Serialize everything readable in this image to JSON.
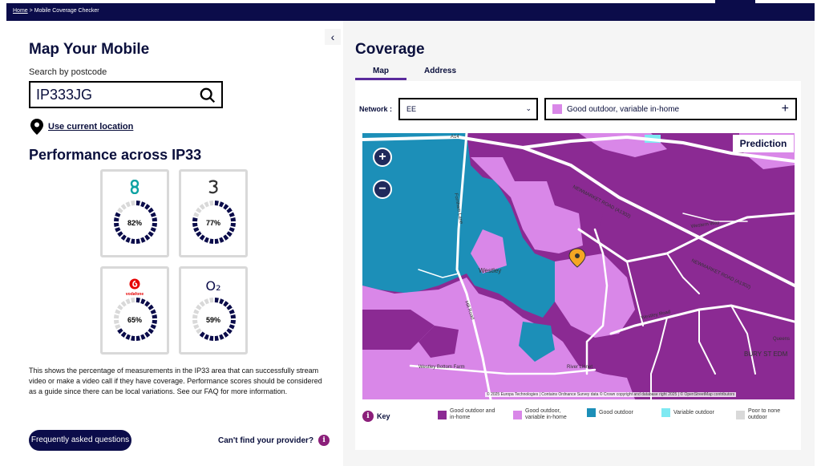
{
  "breadcrumb": {
    "home": "Home",
    "separator": ">",
    "current": "Mobile Coverage Checker"
  },
  "left": {
    "title": "Map Your Mobile",
    "search_label": "Search by postcode",
    "search_value": "IP333JG",
    "use_location": "Use current location",
    "performance_title": "Performance across IP33",
    "providers": [
      {
        "name": "EE",
        "logo": "ee-logo-icon",
        "percent": 82,
        "percent_label": "82%",
        "logo_color": "#0fa3a3"
      },
      {
        "name": "Three",
        "logo": "three-logo-icon",
        "percent": 77,
        "percent_label": "77%",
        "logo_color": "#000000"
      },
      {
        "name": "Vodafone",
        "logo": "vodafone-logo-icon",
        "percent": 65,
        "percent_label": "65%",
        "logo_color": "#e60000",
        "logo_text": "vodafone"
      },
      {
        "name": "O2",
        "logo": "o2-logo-icon",
        "percent": 59,
        "percent_label": "59%",
        "logo_color": "#0b0c4a",
        "logo_text": "O₂"
      }
    ],
    "note": "This shows the percentage of measurements in the IP33 area that can successfully stream video or make a video call if they have coverage. Performance scores should be considered as a guide since there can be local variations. See our FAQ for more information.",
    "faq_button": "Frequently asked questions",
    "cant_find": "Can't find your provider?"
  },
  "right": {
    "title": "Coverage",
    "tabs": [
      {
        "label": "Map",
        "active": true
      },
      {
        "label": "Address",
        "active": false
      }
    ],
    "network_label": "Network :",
    "network_value": "EE",
    "legend_select": "Good outdoor, variable in-home",
    "prediction": "Prediction",
    "map_labels": {
      "westley": "Westley",
      "newmarket1": "NEWMARKET ROAD (A1302)",
      "newmarket2": "NEWMARKET ROAD (A1302)",
      "westley_road": "Westley Road",
      "river_linnet": "River Linnet",
      "bury": "BURY ST EDM",
      "westley_bottom": "Westley Bottom Farm",
      "western_way": "Western Way",
      "a14": "A14",
      "fordham_lane": "Fornham Lane",
      "hill_road": "Hill Road",
      "queens": "Queens"
    },
    "attribution": "© 2025 Europa Technologies | Contains Ordnance Survey data © Crown copyright and database right 2025 | © OpenStreetMap contributors",
    "key_label": "Key",
    "legend": [
      {
        "label": "Good outdoor and in-home",
        "color": "#8b2a93"
      },
      {
        "label": "Good outdoor, variable in-home",
        "color": "#d987e8"
      },
      {
        "label": "Good outdoor",
        "color": "#1c8fb8"
      },
      {
        "label": "Variable outdoor",
        "color": "#7ee9f2"
      },
      {
        "label": "Poor to none outdoor",
        "color": "#d9d9d9"
      }
    ]
  }
}
